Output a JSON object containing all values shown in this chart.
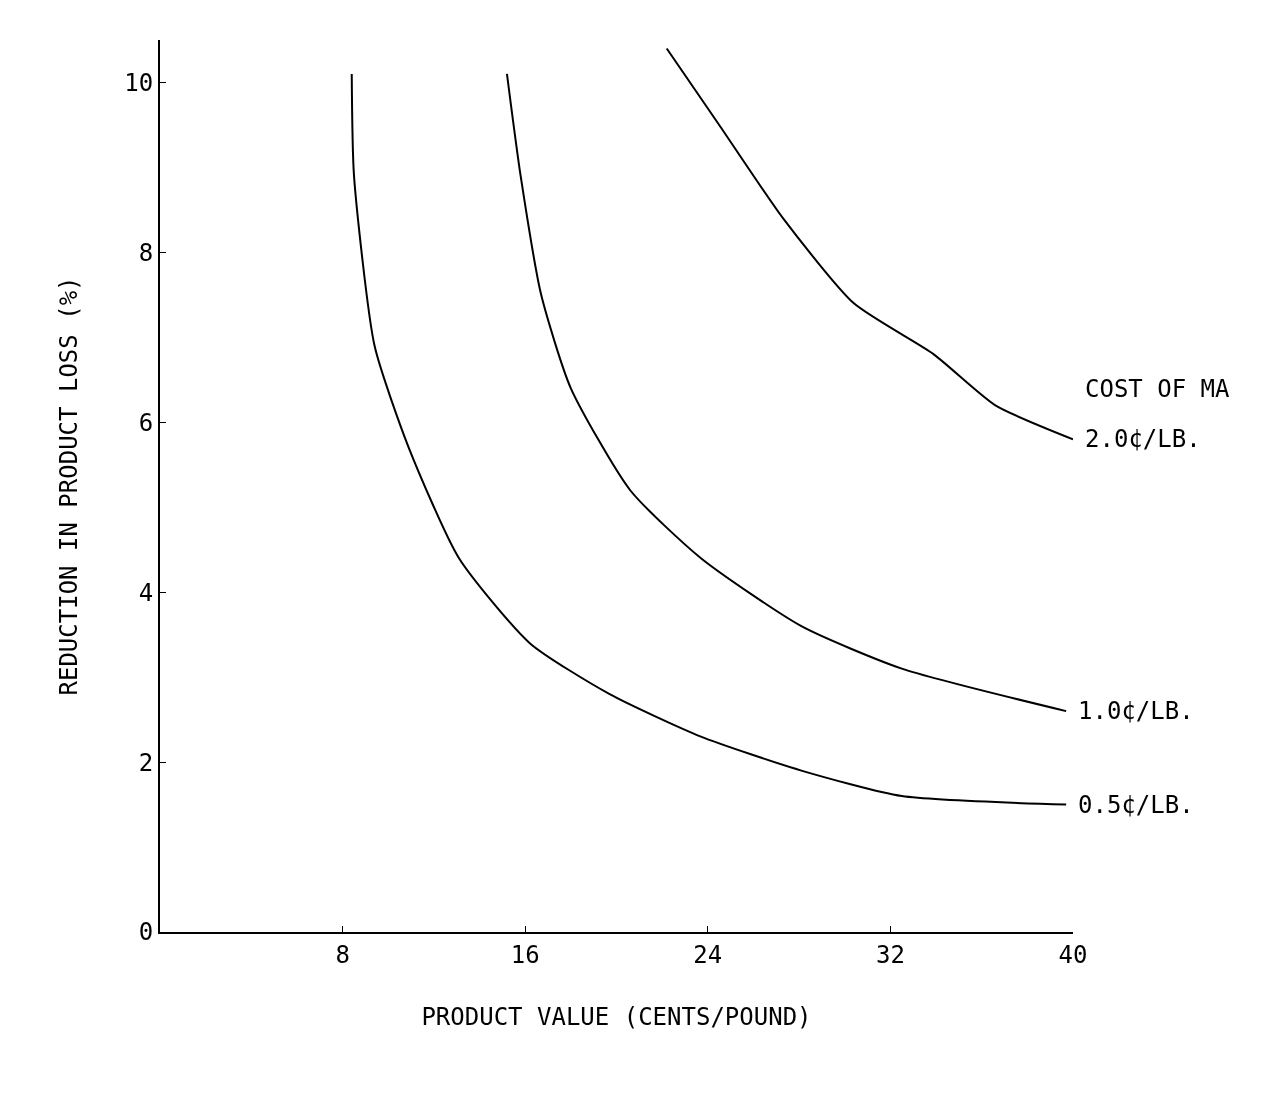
{
  "chart_data": {
    "type": "line",
    "xlabel": "PRODUCT VALUE (CENTS/POUND)",
    "ylabel": "REDUCTION IN PRODUCT LOSS (%)",
    "xlim": [
      0,
      40
    ],
    "xticks": [
      8,
      16,
      24,
      32,
      40
    ],
    "ylim": [
      0,
      10.5
    ],
    "yticks": [
      0,
      2,
      4,
      6,
      8,
      10
    ],
    "grid": false,
    "legend": false,
    "marker": "none",
    "line_style": "solid",
    "annotations": [
      "COST OF MA"
    ],
    "series": [
      {
        "name": "2.0¢/LB.",
        "color": "#000000",
        "x": [
          22.2,
          24.5,
          27.3,
          30.4,
          33.9,
          36.6,
          40
        ],
        "values": [
          10.4,
          9.5,
          8.4,
          7.4,
          6.8,
          6.2,
          5.8
        ]
      },
      {
        "name": "1.0¢/LB.",
        "color": "#000000",
        "x": [
          15.2,
          15.8,
          16.7,
          18.0,
          20.6,
          23.7,
          28.1,
          32.5,
          39.7
        ],
        "values": [
          10.1,
          8.9,
          7.5,
          6.4,
          5.2,
          4.4,
          3.6,
          3.1,
          2.6
        ]
      },
      {
        "name": "0.5¢/LB.",
        "color": "#000000",
        "x": [
          8.4,
          8.5,
          9.4,
          10.9,
          13.1,
          16.2,
          19.7,
          23.7,
          28.1,
          32.5,
          39.7
        ],
        "values": [
          10.1,
          8.9,
          6.9,
          5.7,
          4.4,
          3.4,
          2.8,
          2.3,
          1.9,
          1.6,
          1.5
        ]
      }
    ]
  }
}
